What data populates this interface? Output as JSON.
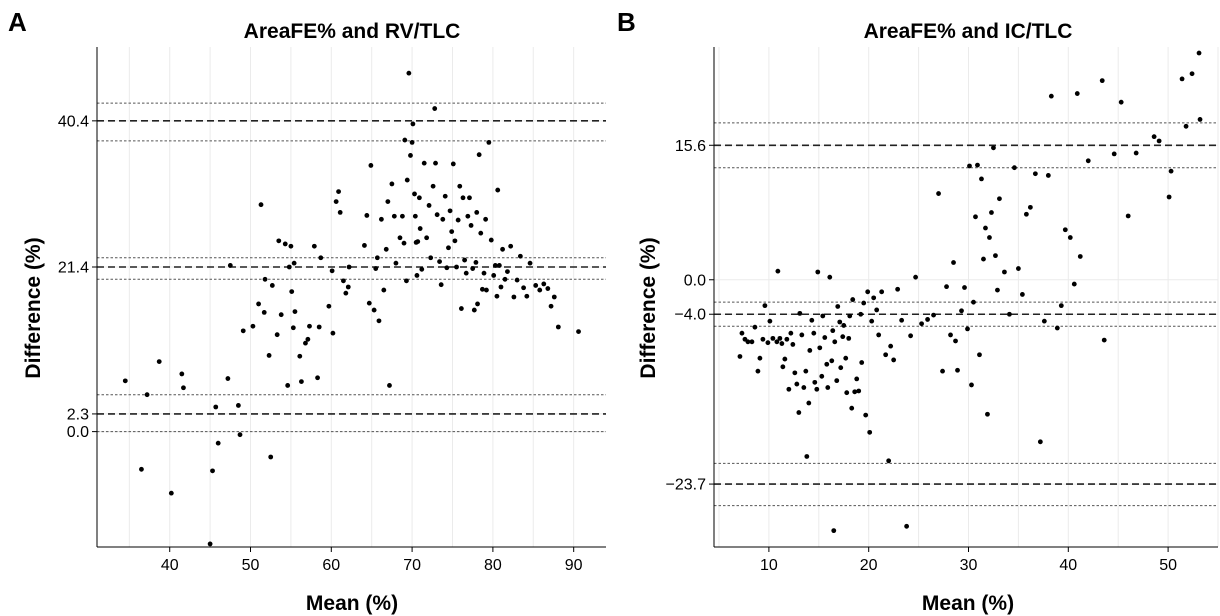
{
  "chart_data": [
    {
      "panel": "A",
      "type": "scatter",
      "title": "AreaFE% and RV/TLC",
      "xlabel": "Mean (%)",
      "ylabel": "Difference (%)",
      "xlim": [
        31,
        94
      ],
      "ylim": [
        -15,
        50
      ],
      "x_ticks": [
        40,
        50,
        60,
        70,
        80,
        90
      ],
      "y_ticks": [
        0.0,
        2.3,
        21.4,
        40.4
      ],
      "y_tick_labels": [
        "0.0",
        "2.3",
        "21.4",
        "40.4"
      ],
      "grid": true,
      "hlines": [
        {
          "y": 42.7,
          "style": "dotted"
        },
        {
          "y": 40.4,
          "style": "dashed"
        },
        {
          "y": 37.8,
          "style": "dotted"
        },
        {
          "y": 22.6,
          "style": "dotted"
        },
        {
          "y": 21.4,
          "style": "dashed"
        },
        {
          "y": 19.8,
          "style": "dotted"
        },
        {
          "y": 4.8,
          "style": "dotted"
        },
        {
          "y": 2.3,
          "style": "dashed"
        },
        {
          "y": 0.0,
          "style": "dotted"
        }
      ],
      "points": [
        [
          34.5,
          6.6
        ],
        [
          36.5,
          -4.9
        ],
        [
          37.2,
          4.8
        ],
        [
          38.7,
          9.1
        ],
        [
          40.2,
          -8.0
        ],
        [
          41.5,
          7.5
        ],
        [
          41.7,
          5.7
        ],
        [
          45.0,
          -14.6
        ],
        [
          45.3,
          -5.1
        ],
        [
          45.7,
          3.2
        ],
        [
          46.0,
          -1.5
        ],
        [
          47.2,
          6.9
        ],
        [
          47.5,
          21.6
        ],
        [
          48.5,
          3.4
        ],
        [
          48.7,
          -0.4
        ],
        [
          49.1,
          13.1
        ],
        [
          50.3,
          13.7
        ],
        [
          51.0,
          16.6
        ],
        [
          51.3,
          29.5
        ],
        [
          51.7,
          15.5
        ],
        [
          51.8,
          19.8
        ],
        [
          52.3,
          9.9
        ],
        [
          52.5,
          -3.3
        ],
        [
          52.7,
          19.0
        ],
        [
          53.3,
          12.6
        ],
        [
          53.5,
          24.8
        ],
        [
          53.8,
          15.2
        ],
        [
          54.3,
          24.4
        ],
        [
          54.6,
          6.0
        ],
        [
          54.8,
          21.4
        ],
        [
          55.0,
          24.1
        ],
        [
          55.1,
          18.2
        ],
        [
          55.4,
          21.9
        ],
        [
          55.5,
          15.6
        ],
        [
          55.3,
          13.5
        ],
        [
          56.1,
          9.8
        ],
        [
          56.3,
          6.5
        ],
        [
          56.8,
          11.5
        ],
        [
          57.1,
          12.0
        ],
        [
          57.3,
          13.7
        ],
        [
          57.9,
          24.1
        ],
        [
          58.3,
          7.0
        ],
        [
          58.5,
          13.6
        ],
        [
          58.7,
          22.6
        ],
        [
          59.7,
          16.3
        ],
        [
          60.1,
          20.9
        ],
        [
          60.2,
          12.8
        ],
        [
          60.6,
          29.9
        ],
        [
          60.9,
          31.2
        ],
        [
          61.1,
          28.5
        ],
        [
          61.5,
          19.6
        ],
        [
          61.8,
          18.0
        ],
        [
          62.2,
          21.4
        ],
        [
          62.1,
          18.8
        ],
        [
          64.1,
          24.2
        ],
        [
          64.4,
          28.1
        ],
        [
          64.7,
          16.7
        ],
        [
          64.9,
          34.6
        ],
        [
          65.3,
          15.8
        ],
        [
          65.5,
          21.2
        ],
        [
          65.7,
          22.6
        ],
        [
          65.9,
          14.4
        ],
        [
          66.2,
          27.6
        ],
        [
          66.5,
          18.4
        ],
        [
          66.8,
          23.7
        ],
        [
          67.0,
          29.9
        ],
        [
          67.2,
          6.0
        ],
        [
          67.5,
          32.2
        ],
        [
          67.8,
          28.0
        ],
        [
          68.0,
          21.9
        ],
        [
          68.5,
          25.2
        ],
        [
          68.8,
          28.0
        ],
        [
          69.0,
          24.5
        ],
        [
          69.1,
          37.9
        ],
        [
          69.3,
          19.6
        ],
        [
          69.4,
          32.7
        ],
        [
          69.6,
          46.6
        ],
        [
          69.8,
          35.9
        ],
        [
          70.0,
          37.6
        ],
        [
          70.1,
          40.0
        ],
        [
          70.3,
          30.9
        ],
        [
          70.4,
          28.0
        ],
        [
          70.5,
          24.6
        ],
        [
          70.6,
          20.3
        ],
        [
          70.7,
          24.7
        ],
        [
          70.9,
          30.4
        ],
        [
          71.0,
          26.4
        ],
        [
          71.2,
          21.1
        ],
        [
          71.5,
          34.9
        ],
        [
          71.8,
          25.2
        ],
        [
          72.1,
          29.4
        ],
        [
          72.3,
          22.6
        ],
        [
          72.6,
          31.9
        ],
        [
          72.8,
          42.0
        ],
        [
          72.9,
          34.9
        ],
        [
          73.1,
          28.2
        ],
        [
          73.4,
          22.1
        ],
        [
          73.6,
          19.1
        ],
        [
          73.8,
          27.6
        ],
        [
          74.1,
          30.6
        ],
        [
          74.3,
          21.3
        ],
        [
          74.5,
          23.9
        ],
        [
          74.7,
          28.7
        ],
        [
          74.9,
          26.0
        ],
        [
          75.1,
          34.8
        ],
        [
          75.3,
          24.8
        ],
        [
          75.5,
          21.4
        ],
        [
          75.7,
          27.5
        ],
        [
          75.9,
          31.9
        ],
        [
          76.1,
          16.0
        ],
        [
          76.3,
          30.4
        ],
        [
          76.5,
          22.3
        ],
        [
          76.7,
          20.6
        ],
        [
          76.9,
          28.0
        ],
        [
          77.1,
          30.4
        ],
        [
          77.3,
          26.8
        ],
        [
          77.5,
          21.2
        ],
        [
          77.7,
          15.8
        ],
        [
          77.9,
          22.0
        ],
        [
          78.0,
          28.5
        ],
        [
          78.1,
          16.6
        ],
        [
          78.3,
          36.0
        ],
        [
          78.5,
          25.8
        ],
        [
          78.7,
          18.5
        ],
        [
          78.9,
          20.6
        ],
        [
          79.1,
          27.6
        ],
        [
          79.2,
          18.4
        ],
        [
          79.5,
          37.6
        ],
        [
          79.8,
          24.9
        ],
        [
          80.1,
          20.3
        ],
        [
          80.3,
          21.6
        ],
        [
          80.5,
          17.6
        ],
        [
          80.6,
          31.4
        ],
        [
          80.8,
          21.6
        ],
        [
          81.0,
          18.8
        ],
        [
          81.2,
          23.7
        ],
        [
          81.5,
          19.8
        ],
        [
          81.8,
          20.8
        ],
        [
          82.2,
          24.1
        ],
        [
          82.6,
          17.5
        ],
        [
          83.0,
          19.7
        ],
        [
          83.4,
          22.8
        ],
        [
          83.8,
          18.7
        ],
        [
          84.2,
          17.6
        ],
        [
          84.6,
          21.9
        ],
        [
          85.3,
          19.0
        ],
        [
          85.8,
          18.4
        ],
        [
          86.3,
          19.2
        ],
        [
          86.8,
          18.6
        ],
        [
          87.2,
          16.3
        ],
        [
          87.6,
          17.5
        ],
        [
          88.1,
          13.6
        ],
        [
          90.6,
          13.0
        ]
      ]
    },
    {
      "panel": "B",
      "type": "scatter",
      "title": "AreaFE% and IC/TLC",
      "xlabel": "Mean (%)",
      "ylabel": "Difference (%)",
      "xlim": [
        4.5,
        55
      ],
      "ylim": [
        -31,
        27
      ],
      "x_ticks": [
        10,
        20,
        30,
        40,
        50
      ],
      "y_ticks": [
        -23.7,
        -4.0,
        0.0,
        15.6
      ],
      "y_tick_labels": [
        "−23.7",
        "−4.0",
        "0.0",
        "15.6"
      ],
      "grid": true,
      "hlines": [
        {
          "y": 18.2,
          "style": "dotted"
        },
        {
          "y": 15.6,
          "style": "dashed"
        },
        {
          "y": 13.0,
          "style": "dotted"
        },
        {
          "y": -2.6,
          "style": "dotted"
        },
        {
          "y": -4.0,
          "style": "dashed"
        },
        {
          "y": -5.4,
          "style": "dotted"
        },
        {
          "y": -21.3,
          "style": "dotted"
        },
        {
          "y": -23.7,
          "style": "dashed"
        },
        {
          "y": -26.2,
          "style": "dotted"
        }
      ],
      "points": [
        [
          7.1,
          -8.9
        ],
        [
          7.3,
          -6.2
        ],
        [
          7.6,
          -6.9
        ],
        [
          7.9,
          -7.2
        ],
        [
          8.3,
          -7.2
        ],
        [
          8.6,
          -5.5
        ],
        [
          8.9,
          -10.6
        ],
        [
          9.1,
          -9.1
        ],
        [
          9.4,
          -6.9
        ],
        [
          9.6,
          -3.0
        ],
        [
          9.9,
          -7.3
        ],
        [
          10.1,
          -4.8
        ],
        [
          10.4,
          -6.8
        ],
        [
          10.8,
          -7.2
        ],
        [
          10.9,
          1.0
        ],
        [
          11.1,
          -6.8
        ],
        [
          11.3,
          -7.4
        ],
        [
          11.4,
          -10.1
        ],
        [
          11.6,
          -9.2
        ],
        [
          11.8,
          -6.9
        ],
        [
          12.0,
          -12.7
        ],
        [
          12.2,
          -6.2
        ],
        [
          12.4,
          -7.5
        ],
        [
          12.6,
          -10.8
        ],
        [
          12.8,
          -12.1
        ],
        [
          13.0,
          -15.4
        ],
        [
          13.1,
          -3.9
        ],
        [
          13.3,
          -6.4
        ],
        [
          13.5,
          -12.5
        ],
        [
          13.7,
          -10.6
        ],
        [
          13.8,
          -20.5
        ],
        [
          14.0,
          -14.3
        ],
        [
          14.1,
          -8.2
        ],
        [
          14.3,
          -4.7
        ],
        [
          14.5,
          -6.2
        ],
        [
          14.6,
          -11.9
        ],
        [
          14.8,
          -12.7
        ],
        [
          14.9,
          0.9
        ],
        [
          15.1,
          -7.9
        ],
        [
          15.3,
          -11.2
        ],
        [
          15.4,
          -4.2
        ],
        [
          15.6,
          -6.7
        ],
        [
          15.8,
          -9.8
        ],
        [
          15.9,
          -12.5
        ],
        [
          16.1,
          0.3
        ],
        [
          16.3,
          -9.4
        ],
        [
          16.4,
          -5.9
        ],
        [
          16.5,
          -29.1
        ],
        [
          16.6,
          -7.2
        ],
        [
          16.8,
          -11.7
        ],
        [
          16.9,
          -3.1
        ],
        [
          17.1,
          -4.9
        ],
        [
          17.2,
          -10.2
        ],
        [
          17.4,
          -6.6
        ],
        [
          17.5,
          -5.3
        ],
        [
          17.7,
          -9.1
        ],
        [
          17.8,
          -13.1
        ],
        [
          18.0,
          -6.8
        ],
        [
          18.1,
          -4.2
        ],
        [
          18.3,
          -14.9
        ],
        [
          18.4,
          -2.3
        ],
        [
          18.6,
          -13.0
        ],
        [
          18.8,
          -11.5
        ],
        [
          19.0,
          -12.9
        ],
        [
          19.2,
          -4.0
        ],
        [
          19.3,
          -9.6
        ],
        [
          19.5,
          -2.7
        ],
        [
          19.7,
          -15.7
        ],
        [
          19.9,
          -1.4
        ],
        [
          20.1,
          -17.7
        ],
        [
          20.3,
          -4.8
        ],
        [
          20.5,
          -2.1
        ],
        [
          20.8,
          -3.5
        ],
        [
          21.0,
          -6.4
        ],
        [
          21.3,
          -1.4
        ],
        [
          21.7,
          -8.7
        ],
        [
          22.0,
          -21.0
        ],
        [
          22.2,
          -7.7
        ],
        [
          22.5,
          -9.3
        ],
        [
          22.9,
          -1.1
        ],
        [
          23.3,
          -4.7
        ],
        [
          23.8,
          -28.6
        ],
        [
          24.2,
          -6.5
        ],
        [
          24.7,
          0.3
        ],
        [
          25.3,
          -5.1
        ],
        [
          25.9,
          -4.6
        ],
        [
          26.5,
          -4.1
        ],
        [
          27.0,
          10.0
        ],
        [
          27.4,
          -10.6
        ],
        [
          27.8,
          -0.8
        ],
        [
          28.2,
          -6.4
        ],
        [
          28.5,
          2.0
        ],
        [
          28.7,
          -7.1
        ],
        [
          28.9,
          -10.5
        ],
        [
          29.3,
          -3.6
        ],
        [
          29.6,
          -0.9
        ],
        [
          29.9,
          -5.7
        ],
        [
          30.1,
          13.2
        ],
        [
          30.3,
          -12.2
        ],
        [
          30.5,
          -2.6
        ],
        [
          30.7,
          7.3
        ],
        [
          30.9,
          13.3
        ],
        [
          31.1,
          -8.7
        ],
        [
          31.3,
          11.7
        ],
        [
          31.5,
          2.4
        ],
        [
          31.7,
          6.0
        ],
        [
          31.9,
          -15.6
        ],
        [
          32.1,
          4.9
        ],
        [
          32.3,
          7.8
        ],
        [
          32.5,
          15.3
        ],
        [
          32.7,
          2.8
        ],
        [
          32.9,
          -1.2
        ],
        [
          33.1,
          9.4
        ],
        [
          33.6,
          0.9
        ],
        [
          34.1,
          -4.0
        ],
        [
          34.6,
          13.0
        ],
        [
          35.0,
          1.3
        ],
        [
          35.4,
          -1.7
        ],
        [
          35.8,
          7.6
        ],
        [
          36.2,
          8.4
        ],
        [
          36.7,
          12.3
        ],
        [
          37.2,
          -18.8
        ],
        [
          37.6,
          -4.8
        ],
        [
          38.0,
          12.1
        ],
        [
          38.3,
          21.3
        ],
        [
          38.9,
          -5.6
        ],
        [
          39.3,
          -3.0
        ],
        [
          39.7,
          5.8
        ],
        [
          40.2,
          4.9
        ],
        [
          40.6,
          -0.5
        ],
        [
          40.9,
          21.6
        ],
        [
          41.2,
          2.7
        ],
        [
          42.0,
          13.8
        ],
        [
          43.4,
          23.1
        ],
        [
          43.6,
          -7.0
        ],
        [
          44.6,
          14.6
        ],
        [
          45.3,
          20.6
        ],
        [
          46.0,
          7.4
        ],
        [
          46.8,
          14.7
        ],
        [
          48.6,
          16.6
        ],
        [
          49.1,
          16.1
        ],
        [
          50.1,
          9.6
        ],
        [
          50.3,
          12.6
        ],
        [
          51.4,
          23.3
        ],
        [
          51.8,
          17.8
        ],
        [
          52.4,
          23.9
        ],
        [
          53.1,
          26.3
        ],
        [
          53.2,
          18.6
        ]
      ]
    }
  ]
}
